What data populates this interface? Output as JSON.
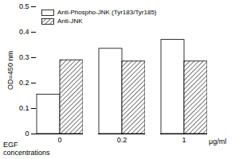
{
  "chart_data": {
    "type": "bar",
    "ylabel": "OD=450 nm",
    "xlabel": "EGF concentrations",
    "xunit": "μg/ml",
    "categories": [
      "0",
      "0.2",
      "1"
    ],
    "series": [
      {
        "name": "Anti-Phospho-JNK (Tyr183/Tyr185)",
        "color": "#ffffff",
        "values": [
          0.155,
          0.335,
          0.37
        ]
      },
      {
        "name": "Anti-JNK",
        "color": "#555555",
        "values": [
          0.29,
          0.285,
          0.285
        ]
      }
    ],
    "ylim": [
      0,
      0.5
    ],
    "yticks": [
      0,
      0.1,
      0.2,
      0.3,
      0.4,
      0.5
    ],
    "grid": false,
    "legend": "top-left"
  }
}
